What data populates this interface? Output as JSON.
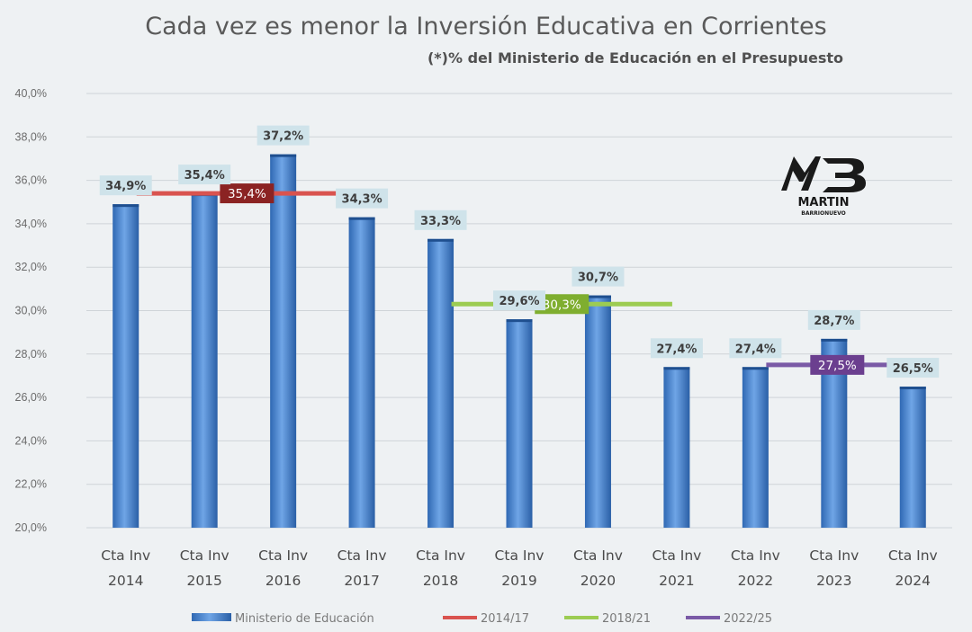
{
  "chart_data": {
    "type": "bar",
    "title": "Cada vez es menor la Inversión Educativa en Corrientes",
    "subtitle": "(*)% del Ministerio de Educación en el Presupuesto",
    "categories": [
      [
        "Cta Inv",
        "2014"
      ],
      [
        "Cta Inv",
        "2015"
      ],
      [
        "Cta Inv",
        "2016"
      ],
      [
        "Cta Inv",
        "2017"
      ],
      [
        "Cta Inv",
        "2018"
      ],
      [
        "Cta Inv",
        "2019"
      ],
      [
        "Cta Inv",
        "2020"
      ],
      [
        "Cta Inv",
        "2021"
      ],
      [
        "Cta Inv",
        "2022"
      ],
      [
        "Cta Inv",
        "2023"
      ],
      [
        "Cta Inv",
        "2024"
      ]
    ],
    "series": [
      {
        "name": "Ministerio de Educación",
        "values": [
          34.9,
          35.4,
          37.2,
          34.3,
          33.3,
          29.6,
          30.7,
          27.4,
          27.4,
          28.7,
          26.5
        ],
        "labels": [
          "34,9%",
          "35,4%",
          "37,2%",
          "34,3%",
          "33,3%",
          "29,6%",
          "30,7%",
          "27,4%",
          "27,4%",
          "28,7%",
          "26,5%"
        ],
        "color": "#3f7fcf"
      }
    ],
    "averages": [
      {
        "name": "2014/17",
        "value": 35.4,
        "label": "35,4%",
        "from": 0,
        "to": 3,
        "color": "#d9534f",
        "box_color": "#8b2323"
      },
      {
        "name": "2018/21",
        "value": 30.3,
        "label": "30,3%",
        "from": 4,
        "to": 7,
        "color": "#9ccc52",
        "box_color": "#7fae2f"
      },
      {
        "name": "2022/25",
        "value": 27.5,
        "label": "27,5%",
        "from": 8,
        "to": 10,
        "color": "#7a5aa6",
        "box_color": "#6b3f8f"
      }
    ],
    "ylim": [
      20,
      40
    ],
    "yticks": [
      "20,0%",
      "22,0%",
      "24,0%",
      "26,0%",
      "28,0%",
      "30,0%",
      "32,0%",
      "34,0%",
      "36,0%",
      "38,0%",
      "40,0%"
    ],
    "xlabel": "",
    "ylabel": "",
    "grid": true,
    "legend_position": "bottom"
  },
  "logo": {
    "line1": "MARTIN",
    "line2": "BARRIONUEVO"
  }
}
